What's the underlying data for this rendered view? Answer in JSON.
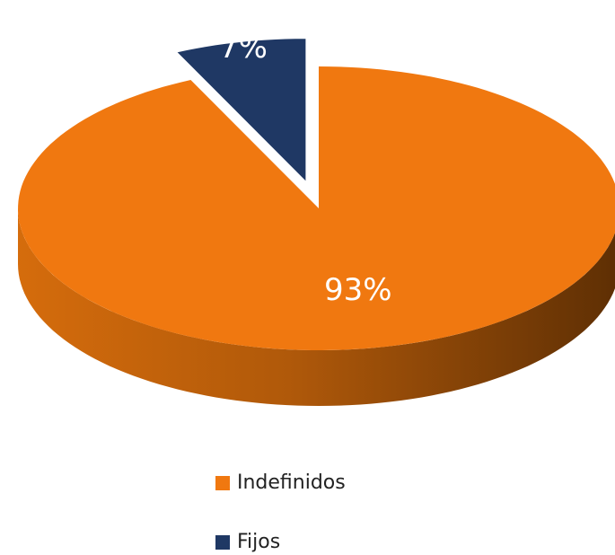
{
  "chart_data": {
    "type": "pie3d",
    "categories": [
      "Indefinidos",
      "Fijos"
    ],
    "values": [
      93,
      7
    ],
    "value_labels": [
      "93%",
      "7%"
    ],
    "colors": [
      "#f07810",
      "#1f3864"
    ],
    "legend": "bottom"
  }
}
